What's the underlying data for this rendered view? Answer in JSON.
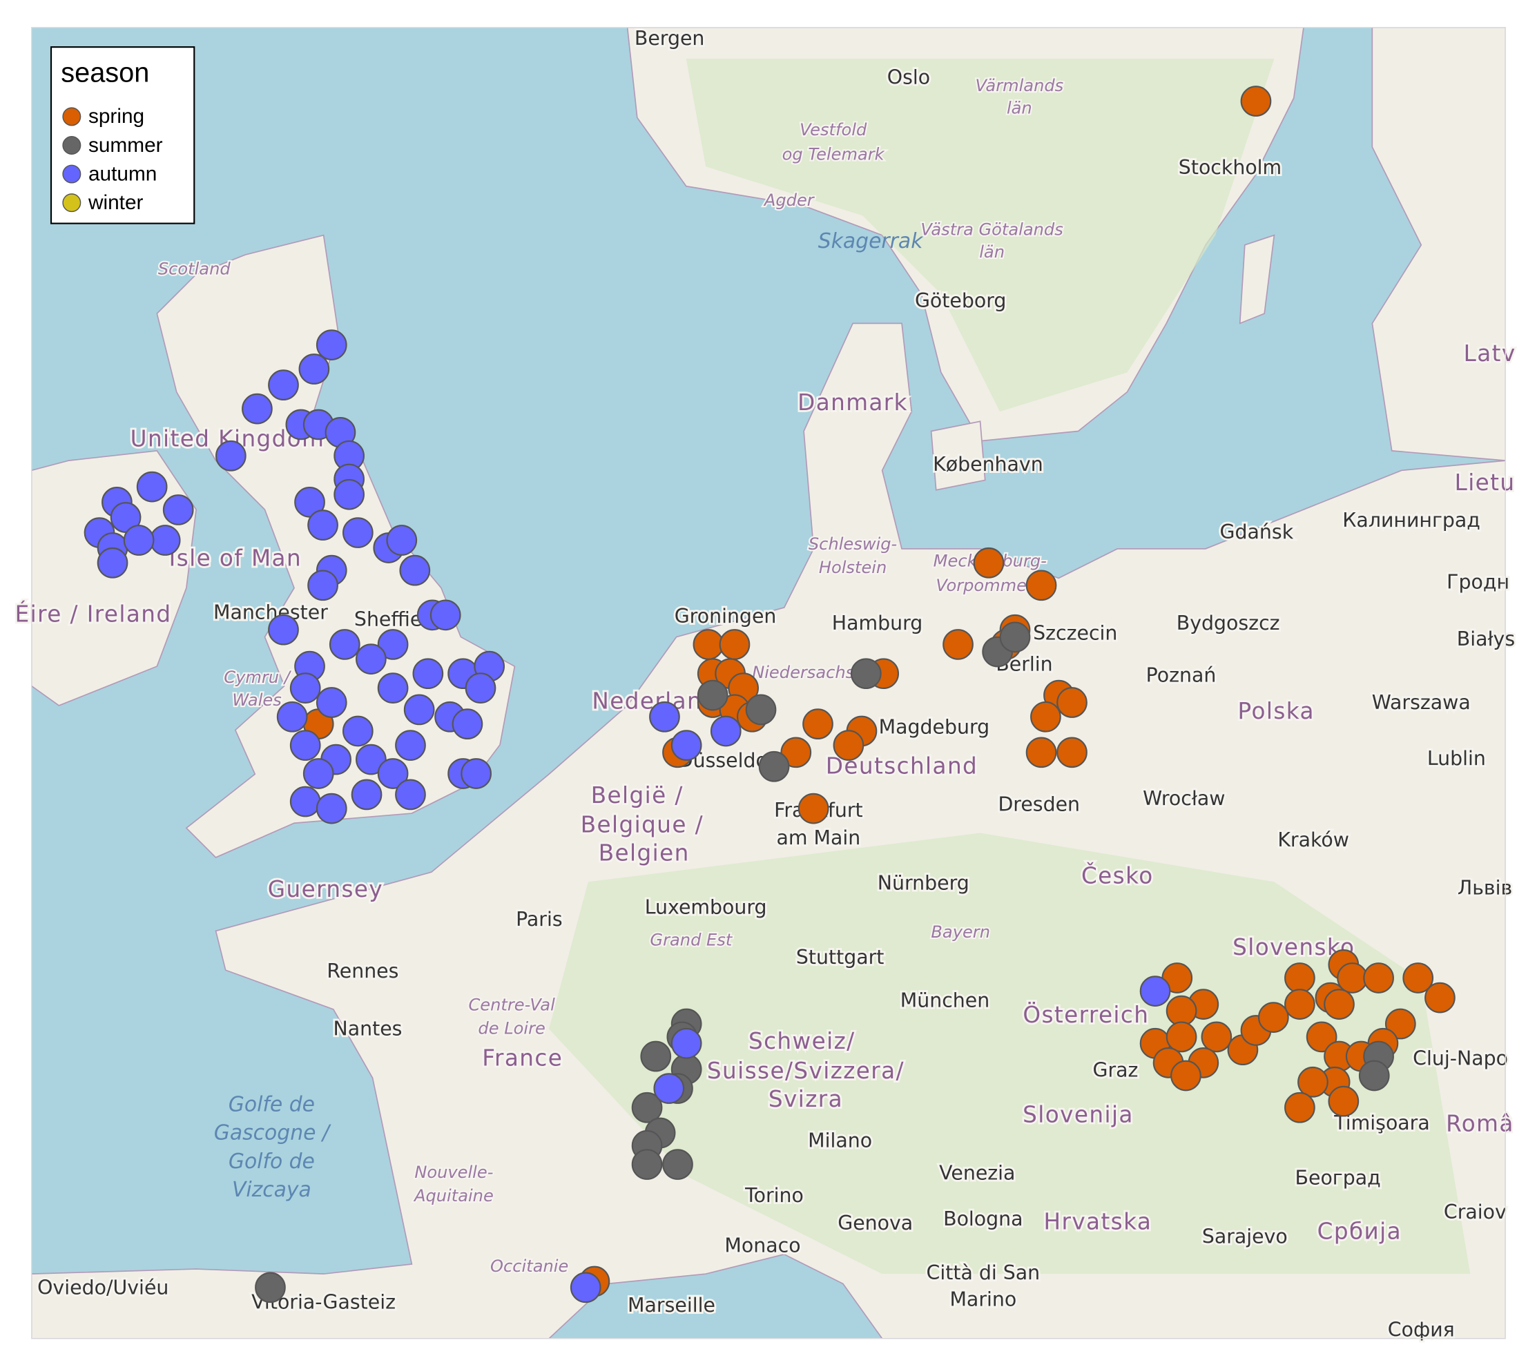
{
  "chart_data": {
    "type": "map",
    "legend_title": "season",
    "series": [
      {
        "name": "spring",
        "color": "#d95f02",
        "x": [
          18.6,
          12.5,
          13.7,
          13.1,
          12.9,
          11.8,
          14.1,
          14.4,
          13.8,
          13.7,
          14.4,
          10.1,
          8.6,
          9.6,
          9.3,
          8.1,
          8.5,
          6.1,
          6.7,
          6.2,
          6.6,
          6.9,
          6.2,
          6.7,
          7.1,
          5.4,
          -2.8,
          3.5,
          16.8,
          17.4,
          16.9,
          16.3,
          16.9,
          17.7,
          17.4,
          16.6,
          17.0,
          18.3,
          18.6,
          19.0,
          19.6,
          19.6,
          20.3,
          20.6,
          20.8,
          21.4,
          22.3,
          22.8,
          21.9,
          20.1,
          20.5,
          21.5,
          20.4,
          19.9,
          19.6,
          20.6,
          21.0,
          20.5
        ],
        "y": [
          59.9,
          54.2,
          53.9,
          53.3,
          53.1,
          53.1,
          52.4,
          52.3,
          52.1,
          51.6,
          51.6,
          52.7,
          52.0,
          51.9,
          51.7,
          51.6,
          50.8,
          53.1,
          53.1,
          52.7,
          52.7,
          52.5,
          52.3,
          52.2,
          52.1,
          51.6,
          52.0,
          43.5,
          48.3,
          47.9,
          47.8,
          47.3,
          47.4,
          47.4,
          47.0,
          47.0,
          46.8,
          47.2,
          47.5,
          47.7,
          48.3,
          47.9,
          48.0,
          48.5,
          48.3,
          48.3,
          48.3,
          48.0,
          47.6,
          47.4,
          47.1,
          47.3,
          46.7,
          46.7,
          46.3,
          46.4,
          47.1,
          47.9
        ]
      },
      {
        "name": "summer",
        "color": "#666666",
        "x": [
          12.7,
          13.1,
          9.7,
          7.3,
          7.6,
          6.2,
          5.6,
          5.5,
          4.9,
          5.6,
          5.4,
          4.7,
          5.0,
          4.7,
          4.7,
          5.4,
          -3.9,
          21.4,
          21.3
        ],
        "y": [
          53.0,
          53.2,
          52.7,
          52.2,
          51.4,
          52.4,
          47.6,
          47.4,
          47.1,
          46.9,
          46.6,
          46.3,
          45.9,
          45.7,
          45.4,
          45.4,
          43.4,
          47.1,
          46.8
        ]
      },
      {
        "name": "autumn",
        "color": "#6464ff",
        "x": [
          -2.5,
          -2.9,
          -3.6,
          -4.2,
          -3.2,
          -2.8,
          -2.3,
          -2.1,
          -2.1,
          -2.1,
          -3.0,
          -4.8,
          -2.7,
          -1.9,
          -1.2,
          -0.9,
          -0.6,
          -2.5,
          -2.7,
          -0.2,
          0.1,
          -3.6,
          -2.2,
          -1.1,
          -1.6,
          -0.3,
          0.5,
          1.1,
          0.9,
          -3.0,
          -3.1,
          -3.4,
          -2.5,
          -1.9,
          -1.1,
          -0.5,
          0.2,
          0.6,
          -3.1,
          -2.4,
          -1.6,
          -0.7,
          -1.1,
          0.5,
          0.8,
          -3.1,
          -2.5,
          -1.7,
          -0.7,
          -2.8,
          -7.4,
          -6.6,
          -6.0,
          -7.2,
          -7.8,
          -7.5,
          -6.3,
          -6.9,
          -7.5,
          5.1,
          5.6,
          6.5,
          16.3,
          5.6,
          5.2,
          3.3
        ],
        "y": [
          57.0,
          56.7,
          56.5,
          56.2,
          56.0,
          56.0,
          55.9,
          55.6,
          55.3,
          55.1,
          55.0,
          55.6,
          54.7,
          54.6,
          54.4,
          54.5,
          54.1,
          54.1,
          53.9,
          53.5,
          53.5,
          53.3,
          53.1,
          53.1,
          52.9,
          52.7,
          52.7,
          52.8,
          52.5,
          52.8,
          52.5,
          52.1,
          52.3,
          51.9,
          52.5,
          52.2,
          52.1,
          52.0,
          51.7,
          51.5,
          51.5,
          51.7,
          51.3,
          51.3,
          51.3,
          50.9,
          50.8,
          51.0,
          51.0,
          51.3,
          55.0,
          55.2,
          54.9,
          54.8,
          54.6,
          54.4,
          54.5,
          54.5,
          54.2,
          52.1,
          51.7,
          51.9,
          48.1,
          47.3,
          46.6,
          43.4
        ]
      },
      {
        "name": "winter",
        "color": "#d4c21a",
        "x": [],
        "y": []
      }
    ]
  },
  "map_labels": [
    "Bergen",
    "Oslo",
    "Stockholm",
    "Scotland",
    "Agder",
    "Skagerrak",
    "Göteborg",
    "Danmark",
    "København",
    "United Kingdom",
    "Isle of Man",
    "Manchester",
    "Sheffield",
    "Gdańsk",
    "Калининград",
    "Groningen",
    "Hamburg",
    "Szczecin",
    "Berlin",
    "Bydgoszcz",
    "Poznań",
    "Polska",
    "Warszawa",
    "Magdeburg",
    "Deutschland",
    "Düsseldorf",
    "Dresden",
    "Wrocław",
    "Lublin",
    "Kraków",
    "Frankfurt",
    "am Main",
    "België /",
    "Belgique /",
    "Belgien",
    "Guernsey",
    "Paris",
    "Luxembourg",
    "Nürnberg",
    "Česko",
    "Grand Est",
    "Bayern",
    "Stuttgart",
    "Rennes",
    "München",
    "Österreich",
    "Slovensko",
    "Centre-Val",
    "de Loire",
    "Nantes",
    "France",
    "Schweiz/",
    "Suisse/Svizzera/",
    "Svizra",
    "Graz",
    "Slovenija",
    "Golfe de",
    "Gascogne /",
    "Golfo de",
    "Vizcaya",
    "Milano",
    "Timişoara",
    "Nouvelle-",
    "Aquitaine",
    "Venezia",
    "Torino",
    "Београд",
    "Genova",
    "Bologna",
    "Hrvatska",
    "Sarajevo",
    "Србија",
    "Monaco",
    "Occitanie",
    "Oviedo/Uviéu",
    "Vitoria-Gasteiz",
    "Marseille",
    "Città di San",
    "Marino",
    "Nederland",
    "Niedersachsen",
    "Cymru /",
    "Wales",
    "Mecklenburg-",
    "Vorpommern",
    "Schleswig-",
    "Holstein",
    "Västra Götalands",
    "län",
    "Vestfold",
    "og Telemark",
    "Värmlands",
    "län",
    "Éire / Ireland",
    "Lietu",
    "Latv",
    "Гродн",
    "Białys",
    "Львів",
    "Cluj-Napo",
    "Româ",
    "Craiov",
    "София"
  ]
}
